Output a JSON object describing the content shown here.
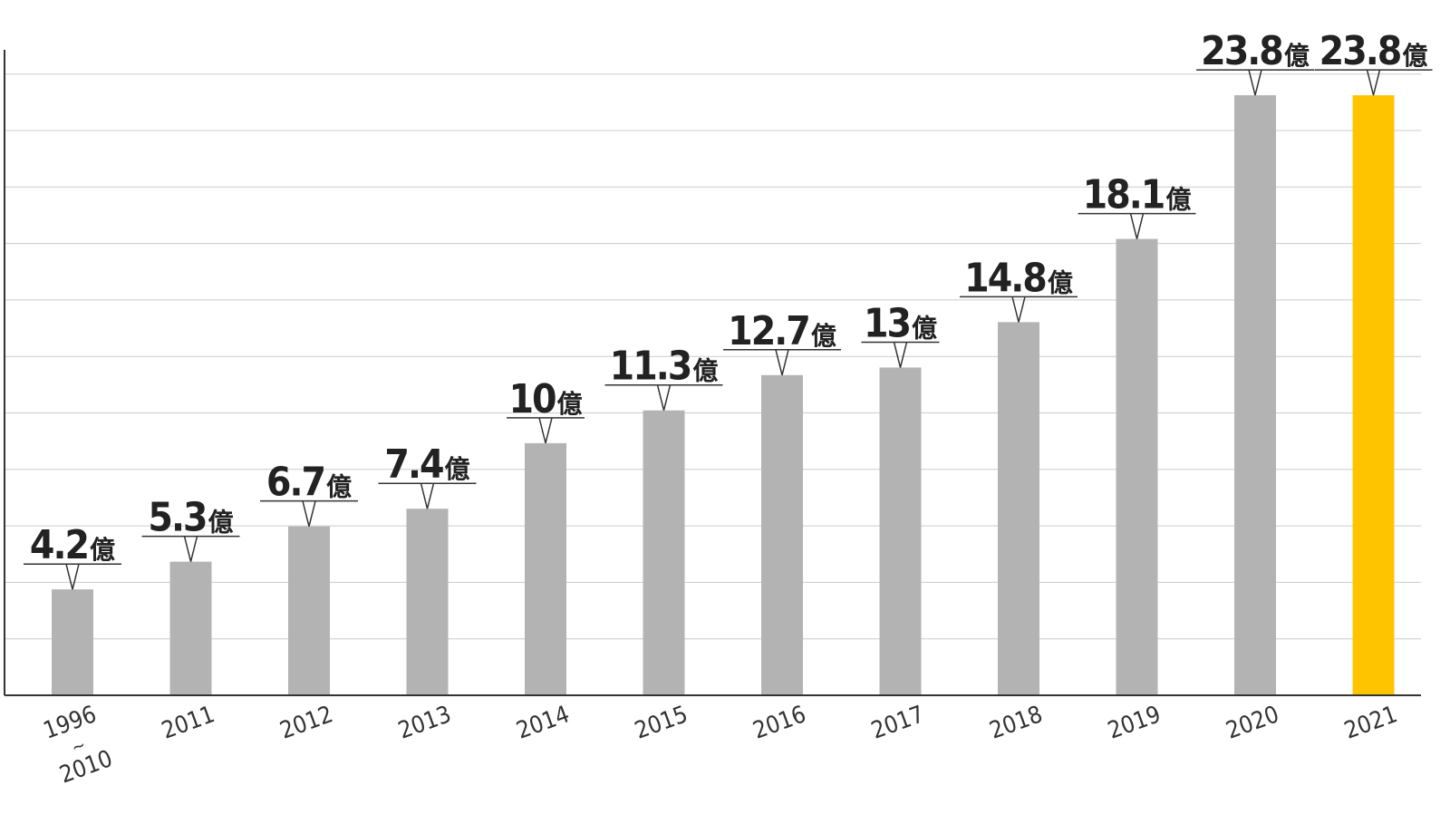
{
  "chart_data": {
    "type": "bar",
    "title": "",
    "xlabel": "",
    "ylabel": "",
    "unit": "億",
    "categories": [
      [
        "1996",
        "~",
        "2010"
      ],
      [
        "2011"
      ],
      [
        "2012"
      ],
      [
        "2013"
      ],
      [
        "2014"
      ],
      [
        "2015"
      ],
      [
        "2016"
      ],
      [
        "2017"
      ],
      [
        "2018"
      ],
      [
        "2019"
      ],
      [
        "2020"
      ],
      [
        "2021"
      ]
    ],
    "values": [
      4.2,
      5.3,
      6.7,
      7.4,
      10,
      11.3,
      12.7,
      13,
      14.8,
      18.1,
      23.8,
      23.8
    ],
    "value_labels": [
      "4.2",
      "5.3",
      "6.7",
      "7.4",
      "10",
      "11.3",
      "12.7",
      "13",
      "14.8",
      "18.1",
      "23.8",
      "23.8"
    ],
    "ylim": [
      0,
      25.6
    ],
    "gridlines": 12,
    "grid": true,
    "legend": "none",
    "colors": {
      "bar": "#b3b3b3",
      "highlight": "#ffc400",
      "grid": "#cccccc",
      "axis": "#333333"
    },
    "highlight_index": 11
  }
}
